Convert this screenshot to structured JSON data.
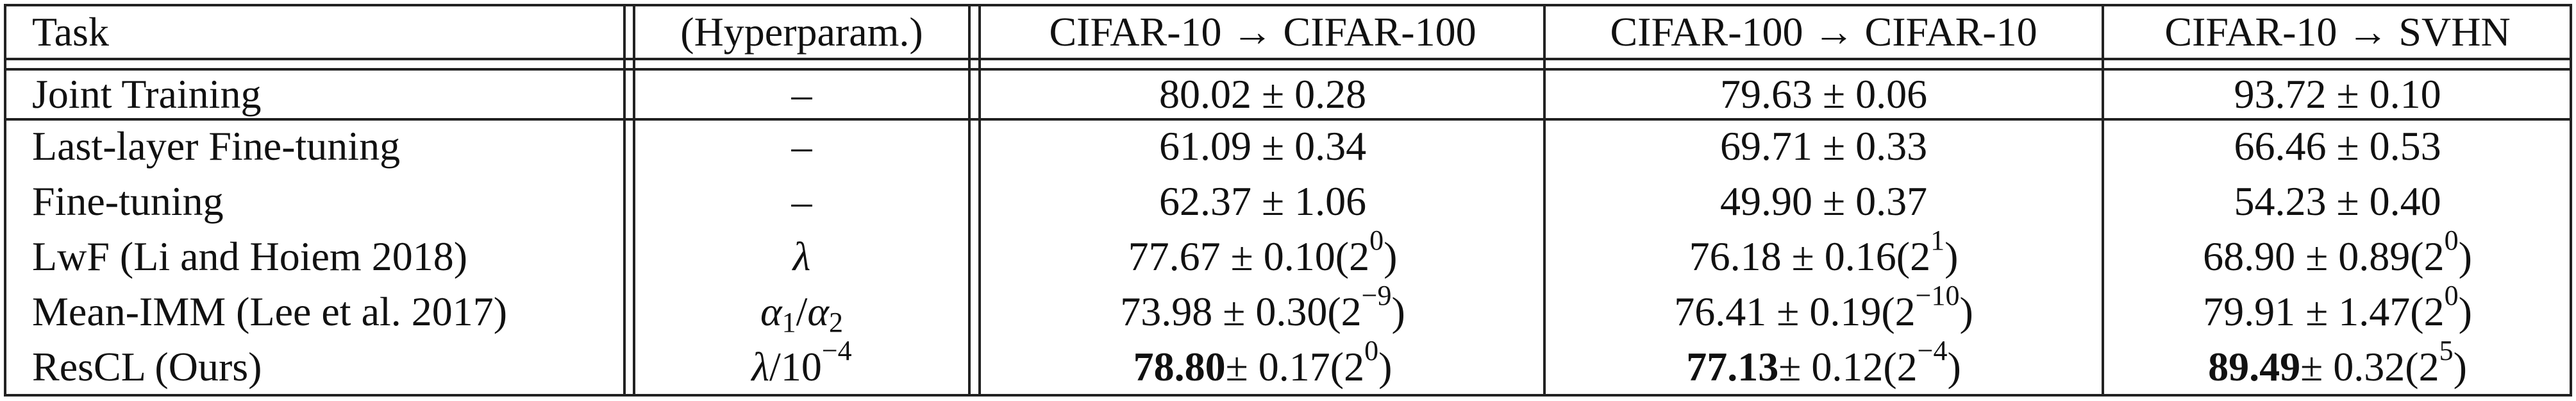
{
  "table": {
    "header": [
      "Task",
      "(Hyperparam.)",
      "CIFAR-10 → CIFAR-100",
      "CIFAR-100 → CIFAR-10",
      "CIFAR-10 → SVHN"
    ],
    "rows": [
      [
        "Joint Training",
        "–",
        "80.02 ± 0.28",
        "79.63 ± 0.06",
        "93.72 ± 0.10"
      ],
      [
        "Last-layer Fine-tuning",
        "–",
        "61.09 ± 0.34",
        "69.71 ± 0.33",
        "66.46 ± 0.53"
      ],
      [
        "Fine-tuning",
        "–",
        "62.37 ± 1.06",
        "49.90 ± 0.37",
        "54.23 ± 0.40"
      ],
      [
        "LwF (Li and Hoiem 2018)",
        [
          {
            "text": "λ",
            "style": "italic"
          }
        ],
        [
          "77.67 ± 0.10(2",
          {
            "text": "0",
            "style": "sup"
          },
          ")"
        ],
        [
          "76.18 ± 0.16(2",
          {
            "text": "1",
            "style": "sup"
          },
          ")"
        ],
        [
          "68.90 ± 0.89(2",
          {
            "text": "0",
            "style": "sup"
          },
          ")"
        ]
      ],
      [
        "Mean-IMM (Lee et al. 2017)",
        [
          {
            "text": "α",
            "style": "italic"
          },
          {
            "text": "1",
            "style": "sub"
          },
          "/",
          {
            "text": "α",
            "style": "italic"
          },
          {
            "text": "2",
            "style": "sub"
          }
        ],
        [
          "73.98 ± 0.30(2",
          {
            "text": "−9",
            "style": "sup"
          },
          ")"
        ],
        [
          "76.41 ± 0.19(2",
          {
            "text": "−10",
            "style": "sup"
          },
          ")"
        ],
        [
          "79.91 ± 1.47(2",
          {
            "text": "0",
            "style": "sup"
          },
          ")"
        ]
      ],
      [
        "ResCL (Ours)",
        [
          {
            "text": "λ",
            "style": "italic"
          },
          "/10",
          {
            "text": "−4",
            "style": "sup"
          }
        ],
        [
          {
            "text": "78.80",
            "style": "bold"
          },
          " ± 0.17(2",
          {
            "text": "0",
            "style": "sup"
          },
          ")"
        ],
        [
          {
            "text": "77.13",
            "style": "bold"
          },
          " ± 0.12(2",
          {
            "text": "−4",
            "style": "sup"
          },
          ")"
        ],
        [
          {
            "text": "89.49",
            "style": "bold"
          },
          " ± 0.32(2",
          {
            "text": "5",
            "style": "sup"
          },
          ")"
        ]
      ]
    ]
  }
}
